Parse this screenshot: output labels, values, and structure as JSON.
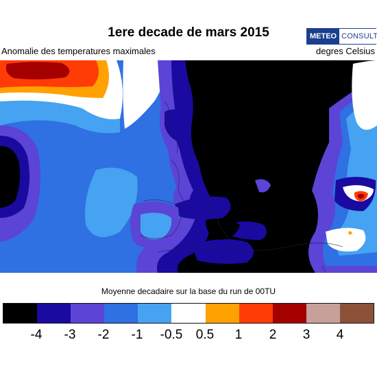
{
  "header": {
    "title": "1ere decade de mars 2015",
    "variable": "Anomalie des temperatures maximales",
    "unit": "degres Celsius"
  },
  "logo": {
    "part1": "METEO",
    "part2": "CONSULT"
  },
  "footnote": "Moyenne decadaire sur la base du run de 00TU",
  "colors": {
    "c0": "#000000",
    "c1": "#1a0aa0",
    "c2": "#5b44d6",
    "c3": "#2f70e3",
    "c4": "#45a3f2",
    "c5": "#ffffff",
    "c6": "#ffa100",
    "c7": "#ff3b06",
    "c8": "#a50000",
    "c9": "#c8a09a",
    "c10": "#8c5138"
  },
  "legend": {
    "swatches": [
      "#000000",
      "#1a0aa0",
      "#5b44d6",
      "#2f70e3",
      "#45a3f2",
      "#ffffff",
      "#ffa100",
      "#ff3b06",
      "#a50000",
      "#c8a09a",
      "#8c5138"
    ],
    "ticks": [
      "-4",
      "-3",
      "-2",
      "-1",
      "-0.5",
      "0.5",
      "1",
      "2",
      "3",
      "4"
    ]
  }
}
